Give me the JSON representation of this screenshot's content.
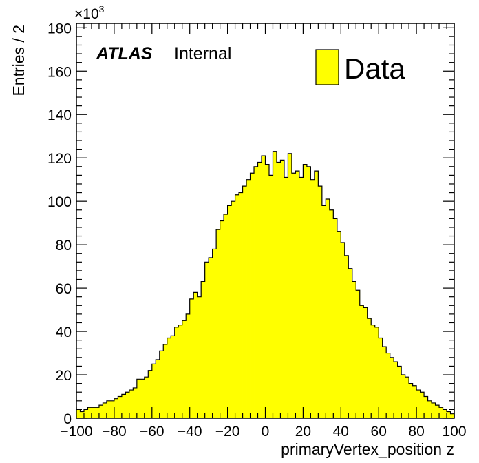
{
  "chart_data": {
    "type": "bar",
    "histogram": true,
    "xlabel": "primaryVertex_position z",
    "ylabel": "Entries / 2",
    "y_multiplier": {
      "base": "×10",
      "exponent": "3"
    },
    "xlim": [
      -100,
      100
    ],
    "ylim": [
      0,
      182
    ],
    "x_ticks": [
      -100,
      -80,
      -60,
      -40,
      -20,
      0,
      20,
      40,
      60,
      80,
      100
    ],
    "x_tick_labels": [
      "−100",
      "−80",
      "−60",
      "−40",
      "−20",
      "0",
      "20",
      "40",
      "60",
      "80",
      "100"
    ],
    "y_ticks": [
      0,
      20,
      40,
      60,
      80,
      100,
      120,
      140,
      160,
      180
    ],
    "y_tick_labels": [
      "0",
      "20",
      "40",
      "60",
      "80",
      "100",
      "120",
      "140",
      "160",
      "180"
    ],
    "bin_width": 2,
    "x_start": -100,
    "fill_color": "#ffff00",
    "line_color": "#000000",
    "annotation": {
      "bold": "ATLAS",
      "text": "Internal"
    },
    "legend": {
      "entry": "Data",
      "position": "top-right"
    },
    "series": [
      {
        "name": "Data",
        "values": [
          4,
          3,
          4,
          5,
          5,
          5,
          6,
          7,
          8,
          8,
          9,
          10,
          11,
          12,
          13,
          14,
          18,
          18,
          19,
          22,
          25,
          27,
          31,
          34,
          37,
          38,
          42,
          43,
          45,
          48,
          55,
          58,
          56,
          63,
          72,
          74,
          78,
          87,
          91,
          94,
          98,
          100,
          103,
          104,
          107,
          110,
          113,
          116,
          118,
          121,
          117,
          112,
          123,
          118,
          119,
          111,
          122,
          113,
          114,
          111,
          117,
          116,
          110,
          114,
          107,
          98,
          101,
          96,
          92,
          86,
          81,
          75,
          69,
          63,
          59,
          52,
          51,
          46,
          43,
          42,
          37,
          33,
          30,
          28,
          26,
          24,
          20,
          19,
          16,
          15,
          13,
          12,
          10,
          8,
          7,
          6,
          5,
          4,
          3,
          2
        ]
      }
    ]
  }
}
